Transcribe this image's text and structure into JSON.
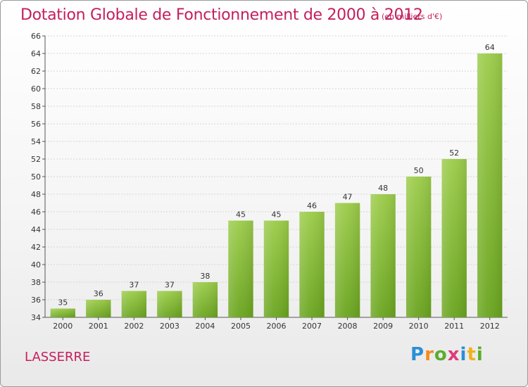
{
  "header": {
    "title": "Dotation Globale de Fonctionnement de 2000 à 2012",
    "subtitle": "(en milliers d'€)"
  },
  "footer": {
    "commune": "LASSERRE",
    "logo_letters": [
      "P",
      "r",
      "o",
      "x",
      "i",
      "t",
      "i"
    ],
    "logo_colors": [
      "#2a8fd6",
      "#f28c1e",
      "#5aae2e",
      "#e03a7a",
      "#2a8fd6",
      "#f2b01e",
      "#5aae2e"
    ]
  },
  "chart_data": {
    "type": "bar",
    "categories": [
      "2000",
      "2001",
      "2002",
      "2003",
      "2004",
      "2005",
      "2006",
      "2007",
      "2008",
      "2009",
      "2010",
      "2011",
      "2012"
    ],
    "values": [
      35,
      36,
      37,
      37,
      38,
      45,
      45,
      46,
      47,
      48,
      50,
      52,
      64
    ],
    "value_labels": [
      "35",
      "36",
      "37",
      "37",
      "38",
      "45",
      "45",
      "46",
      "47",
      "48",
      "50",
      "52",
      "64"
    ],
    "ylim": [
      34,
      66
    ],
    "yticks": [
      "34",
      "36",
      "38",
      "40",
      "42",
      "44",
      "46",
      "48",
      "50",
      "52",
      "54",
      "56",
      "58",
      "60",
      "62",
      "64",
      "66"
    ],
    "grid": true,
    "bar_color_top": "#9ccc4a",
    "bar_color_bottom": "#6aa51f"
  }
}
